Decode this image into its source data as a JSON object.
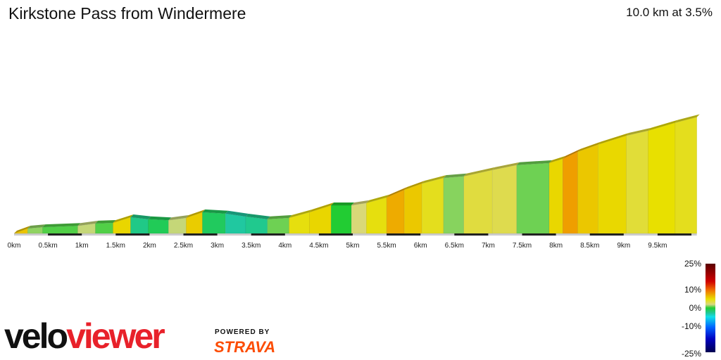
{
  "header": {
    "title": "Kirkstone Pass from Windermere",
    "summary": "10.0 km at 3.5%"
  },
  "chart_data": {
    "type": "area",
    "title": "Kirkstone Pass from Windermere",
    "xlabel": "",
    "ylabel": "",
    "xlim": [
      0,
      10
    ],
    "x_ticks": [
      "0km",
      "0.5km",
      "1km",
      "1.5km",
      "2km",
      "2.5km",
      "3km",
      "3.5km",
      "4km",
      "4.5km",
      "5km",
      "5.5km",
      "6km",
      "6.5km",
      "7km",
      "7.5km",
      "8km",
      "8.5km",
      "9km",
      "9.5km"
    ],
    "profile_km": [
      0,
      0.2,
      0.42,
      0.94,
      1.2,
      1.46,
      1.72,
      1.98,
      2.28,
      2.54,
      2.78,
      3.12,
      3.42,
      3.74,
      4.06,
      4.36,
      4.68,
      4.98,
      5.2,
      5.5,
      5.76,
      6.02,
      6.34,
      6.64,
      7.06,
      7.42,
      7.9,
      8.1,
      8.32,
      8.62,
      9.04,
      9.36,
      9.76,
      10.08
    ],
    "profile_rel_elev_m": [
      0,
      15,
      19,
      23,
      30,
      32,
      49,
      43,
      40,
      47,
      64,
      60,
      51,
      43,
      47,
      64,
      85,
      85,
      92,
      109,
      132,
      151,
      168,
      173,
      192,
      207,
      213,
      226,
      247,
      269,
      296,
      311,
      335,
      352
    ],
    "gradient_scale": {
      "ticks": [
        "25%",
        "10%",
        "0%",
        "-10%",
        "-25%"
      ]
    }
  },
  "branding": {
    "logo_a": "velo",
    "logo_b": "viewer",
    "powered": "POWERED BY",
    "strava": "STRAVA"
  },
  "colors": {
    "logo_red": "#e8212a",
    "strava": "#fc4c02"
  }
}
